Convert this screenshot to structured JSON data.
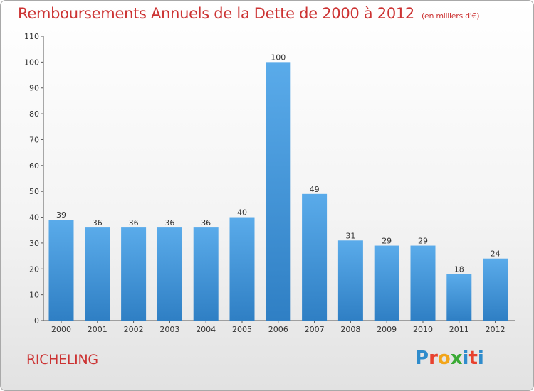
{
  "header": {
    "title": "Remboursements Annuels de la Dette de 2000 à 2012",
    "unit": "(en milliers d'€)"
  },
  "commune": "RICHELING",
  "logo": {
    "text": "Proxiti",
    "colors": [
      "#2f8ccc",
      "#e8422f",
      "#f2a51a",
      "#3aaa35",
      "#2f8ccc",
      "#e8422f",
      "#2f8ccc"
    ]
  },
  "chart_data": {
    "type": "bar",
    "categories": [
      "2000",
      "2001",
      "2002",
      "2003",
      "2004",
      "2005",
      "2006",
      "2007",
      "2008",
      "2009",
      "2010",
      "2011",
      "2012"
    ],
    "values": [
      39,
      36,
      36,
      36,
      36,
      40,
      100,
      49,
      31,
      29,
      29,
      18,
      24
    ],
    "ylim": [
      0,
      110
    ],
    "yticks": [
      0,
      10,
      20,
      30,
      40,
      50,
      60,
      70,
      80,
      90,
      100,
      110
    ],
    "grid": false,
    "bar_color_top": "#5aabea",
    "bar_color_bottom": "#2f7fc4"
  }
}
